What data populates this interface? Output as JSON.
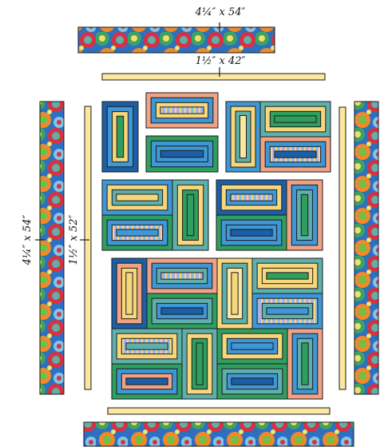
{
  "labels": {
    "top_border": "4¼″ x 54″",
    "top_sashing": "1½″ x 42″",
    "side_border": "4¼″ x 54″",
    "side_sashing": "1½″ x 52″"
  },
  "colors": {
    "blue": "#3f97d6",
    "dark_blue": "#1d5fa6",
    "green": "#2f9e5e",
    "yellow": "#f7d77c",
    "salmon": "#f0a384",
    "teal": "#5fb0ad",
    "cream": "#fbe7a0",
    "border_red": "#d8323f",
    "border_orange": "#f08a27",
    "border_green": "#3aa55b",
    "border_blue": "#2f6fc0",
    "outline": "#1a1a1a"
  }
}
